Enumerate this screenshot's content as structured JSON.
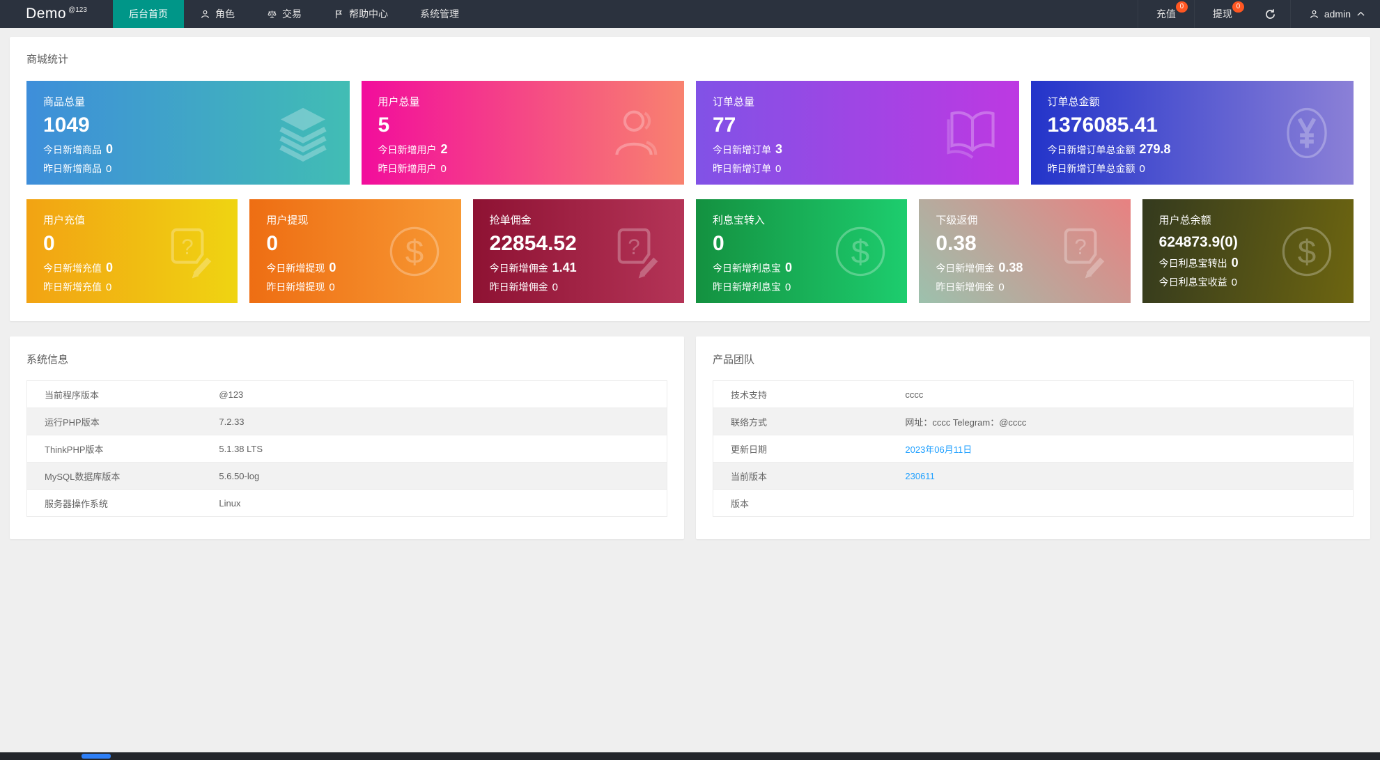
{
  "colors": {
    "accent_green": "#009688",
    "badge_orange": "#ff5722",
    "link_blue": "#1e9fff",
    "navbar_bg": "#2b323e"
  },
  "navbar": {
    "logo": "Demo",
    "logo_sup": "@123",
    "menu": [
      {
        "label": "后台首页",
        "active": true,
        "icon": null
      },
      {
        "label": "角色",
        "active": false,
        "icon": "person-icon"
      },
      {
        "label": "交易",
        "active": false,
        "icon": "scales-icon"
      },
      {
        "label": "帮助中心",
        "active": false,
        "icon": "flag-icon"
      },
      {
        "label": "系统管理",
        "active": false,
        "icon": null
      }
    ],
    "actions": [
      {
        "label": "充值",
        "badge": "0"
      },
      {
        "label": "提现",
        "badge": "0"
      }
    ],
    "user": "admin"
  },
  "stats": {
    "title": "商城统计",
    "row1": [
      {
        "title": "商品总量",
        "value": "1049",
        "line1_label": "今日新增商品",
        "line1_value": "0",
        "line2_label": "昨日新增商品",
        "line2_value": "0",
        "icon": "layers-icon",
        "gradient": [
          "#3e8eda",
          "#41bdb4"
        ],
        "angle": "90deg"
      },
      {
        "title": "用户总量",
        "value": "5",
        "line1_label": "今日新增用户",
        "line1_value": "2",
        "line2_label": "昨日新增用户",
        "line2_value": "0",
        "icon": "user-icon",
        "gradient": [
          "#f20d9c",
          "#f8826f"
        ],
        "angle": "90deg"
      },
      {
        "title": "订单总量",
        "value": "77",
        "line1_label": "今日新增订单",
        "line1_value": "3",
        "line2_label": "昨日新增订单",
        "line2_value": "0",
        "icon": "book-icon",
        "gradient": [
          "#8152e6",
          "#bd39e2"
        ],
        "angle": "90deg"
      },
      {
        "title": "订单总金额",
        "value": "1376085.41",
        "line1_label": "今日新增订单总金额",
        "line1_value": "279.8",
        "line2_label": "昨日新增订单总金额",
        "line2_value": "0",
        "icon": "yen-icon",
        "gradient": [
          "#2334ca",
          "#8b80d7"
        ],
        "angle": "90deg"
      }
    ],
    "row2": [
      {
        "title": "用户充值",
        "value": "0",
        "line1_label": "今日新增充值",
        "line1_value": "0",
        "line2_label": "昨日新增充值",
        "line2_value": "0",
        "icon": "edit-doc-icon",
        "gradient": [
          "#f2a313",
          "#efd412"
        ],
        "angle": "90deg"
      },
      {
        "title": "用户提现",
        "value": "0",
        "line1_label": "今日新增提现",
        "line1_value": "0",
        "line2_label": "昨日新增提现",
        "line2_value": "0",
        "icon": "dollar-icon",
        "gradient": [
          "#ee6e13",
          "#f79833"
        ],
        "angle": "90deg"
      },
      {
        "title": "抢单佣金",
        "value": "22854.52",
        "line1_label": "今日新增佣金",
        "line1_value": "1.41",
        "line2_label": "昨日新增佣金",
        "line2_value": "0",
        "icon": "edit-doc-icon",
        "gradient": [
          "#8e1233",
          "#b43457"
        ],
        "angle": "90deg"
      },
      {
        "title": "利息宝转入",
        "value": "0",
        "line1_label": "今日新增利息宝",
        "line1_value": "0",
        "line2_label": "昨日新增利息宝",
        "line2_value": "0",
        "icon": "dollar-icon",
        "gradient": [
          "#149140",
          "#1dcd6e"
        ],
        "angle": "90deg"
      },
      {
        "title": "下级返佣",
        "value": "0.38",
        "line1_label": "今日新增佣金",
        "line1_value": "0.38",
        "line2_label": "昨日新增佣金",
        "line2_value": "0",
        "icon": "edit-doc-icon",
        "gradient": [
          "#9cc1ad",
          "#e88181"
        ],
        "angle": "45deg"
      },
      {
        "title": "用户总余额",
        "value": "624873.9(0)",
        "value_small": true,
        "line1_label": "今日利息宝转出",
        "line1_value": "0",
        "line2_label": "今日利息宝收益",
        "line2_value": "0",
        "icon": "dollar-icon",
        "gradient": [
          "#343a1e",
          "#6d6510"
        ],
        "angle": "100deg"
      }
    ]
  },
  "system_info": {
    "title": "系统信息",
    "rows": [
      {
        "label": "当前程序版本",
        "value": "@123",
        "link": false
      },
      {
        "label": "运行PHP版本",
        "value": "7.2.33",
        "link": false
      },
      {
        "label": "ThinkPHP版本",
        "value": "5.1.38 LTS",
        "link": false
      },
      {
        "label": "MySQL数据库版本",
        "value": "5.6.50-log",
        "link": false
      },
      {
        "label": "服务器操作系统",
        "value": "Linux",
        "link": false
      }
    ]
  },
  "team": {
    "title": "产品团队",
    "rows": [
      {
        "label": "技术支持",
        "value": "cccc",
        "link": false
      },
      {
        "label": "联络方式",
        "value": "网址：cccc Telegram：@cccc",
        "link": false
      },
      {
        "label": "更新日期",
        "value": "2023年06月11日",
        "link": true
      },
      {
        "label": "当前版本",
        "value": "230611",
        "link": true
      },
      {
        "label": "版本",
        "value": "",
        "link": false
      }
    ]
  }
}
